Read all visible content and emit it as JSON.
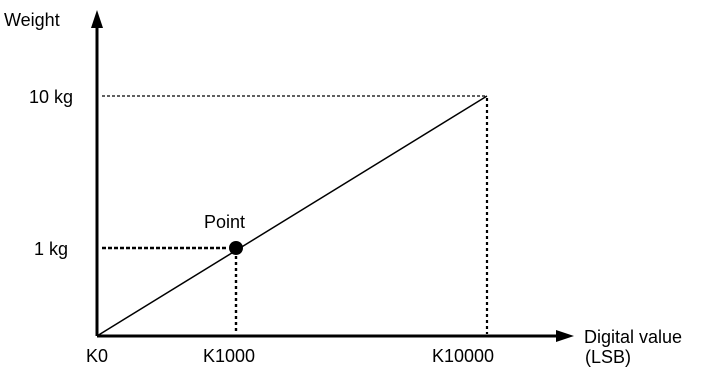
{
  "diagram": {
    "y_axis_label": "Weight",
    "x_axis_label_line1": "Digital value",
    "x_axis_label_line2": "(LSB)",
    "origin_label": "K0",
    "x_ticks": [
      "K1000",
      "K10000"
    ],
    "y_ticks": [
      "10 kg",
      "1 kg"
    ],
    "point_label": "Point"
  },
  "chart_data": {
    "type": "line",
    "x": [
      0,
      1000,
      10000
    ],
    "y": [
      0,
      1,
      10
    ],
    "xlabel": "Digital value (LSB)",
    "ylabel": "Weight",
    "x_tick_labels": [
      "K0",
      "K1000",
      "K10000"
    ],
    "y_tick_labels": [
      "1 kg",
      "10 kg"
    ],
    "marked_point": {
      "x": 1000,
      "y": 1,
      "label": "Point"
    },
    "grid": false
  }
}
